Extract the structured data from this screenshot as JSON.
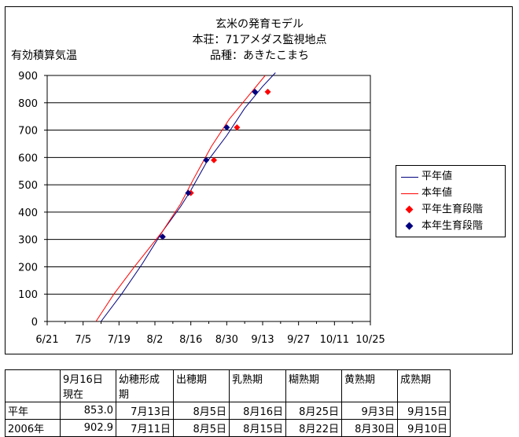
{
  "chart_title": [
    "玄米の発育モデル",
    "本荘：71アメダス監視地点",
    "品種：あきたこまち"
  ],
  "chart_data": {
    "type": "line",
    "ylabel": "有効積算気温",
    "ylim": [
      0,
      900
    ],
    "yticks": [
      "0",
      "100",
      "200",
      "300",
      "400",
      "500",
      "600",
      "700",
      "800",
      "900"
    ],
    "xlim": [
      "2006-06-21",
      "2006-10-25"
    ],
    "xticks": [
      "6/21",
      "7/5",
      "7/19",
      "8/2",
      "8/16",
      "8/30",
      "9/13",
      "9/27",
      "10/11",
      "10/25"
    ],
    "grid": "horizontal",
    "legend_position": "right",
    "series": [
      {
        "name": "平年値",
        "kind": "line",
        "color": "#000080",
        "x": [
          "2006-07-12",
          "2006-07-20",
          "2006-07-28",
          "2006-08-05",
          "2006-08-12",
          "2006-08-16",
          "2006-08-22",
          "2006-08-30",
          "2006-09-06",
          "2006-09-13",
          "2006-09-18"
        ],
        "y": [
          0,
          100,
          210,
          330,
          420,
          480,
          580,
          680,
          780,
          860,
          910
        ]
      },
      {
        "name": "本年値",
        "kind": "line",
        "color": "#ff0000",
        "x": [
          "2006-07-10",
          "2006-07-17",
          "2006-07-25",
          "2006-08-05",
          "2006-08-12",
          "2006-08-17",
          "2006-08-24",
          "2006-08-31",
          "2006-09-07",
          "2006-09-14"
        ],
        "y": [
          0,
          100,
          200,
          330,
          430,
          520,
          640,
          740,
          820,
          900
        ]
      },
      {
        "name": "平年生育段階",
        "kind": "marker",
        "color": "#ff0000",
        "x": [
          "2006-08-05",
          "2006-08-16",
          "2006-08-25",
          "2006-09-03",
          "2006-09-15"
        ],
        "y": [
          310,
          470,
          590,
          710,
          840
        ]
      },
      {
        "name": "本年生育段階",
        "kind": "marker",
        "color": "#000080",
        "x": [
          "2006-08-05",
          "2006-08-15",
          "2006-08-22",
          "2006-08-30",
          "2006-09-10"
        ],
        "y": [
          310,
          470,
          590,
          710,
          840
        ]
      }
    ]
  },
  "table": {
    "headers": [
      "",
      "9月16日\n現在",
      "幼穂形成\n期",
      "出穂期",
      "乳熟期",
      "糊熟期",
      "黄熟期",
      "成熟期"
    ],
    "rows": [
      [
        "平年",
        "853.0",
        "7月13日",
        "8月5日",
        "8月16日",
        "8月25日",
        "9月3日",
        "9月15日"
      ],
      [
        "2006年",
        "902.9",
        "7月11日",
        "8月5日",
        "8月15日",
        "8月22日",
        "8月30日",
        "9月10日"
      ]
    ]
  }
}
